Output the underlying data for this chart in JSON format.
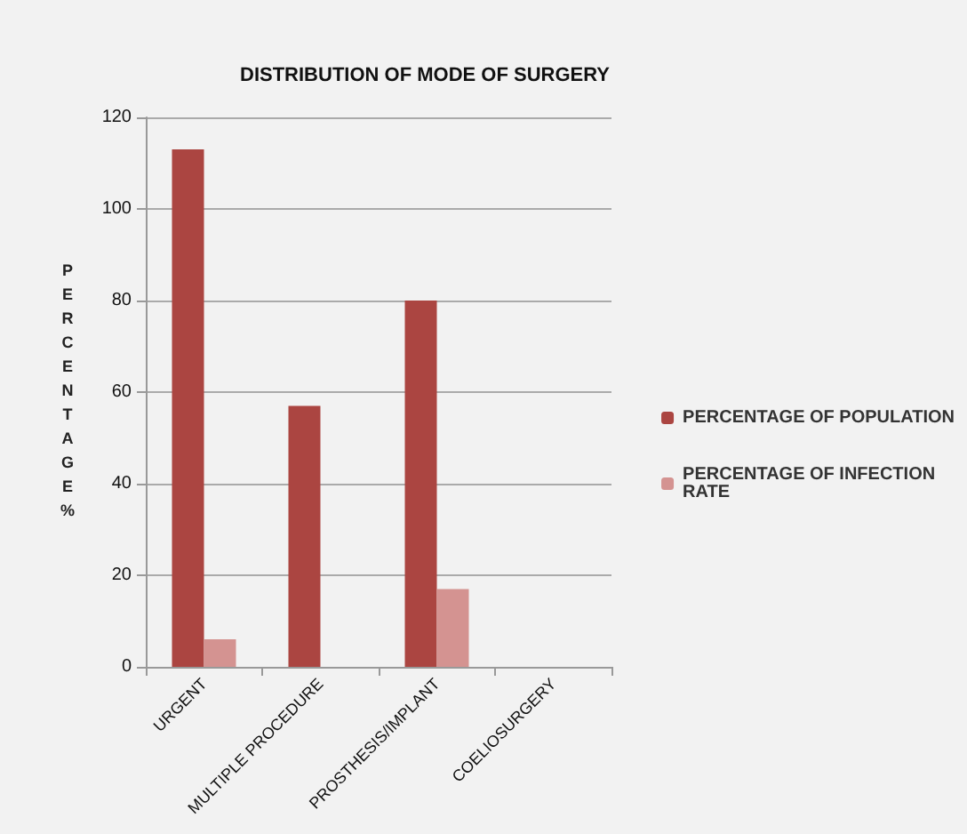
{
  "chart_data": {
    "type": "bar",
    "title": "DISTRIBUTION OF MODE OF SURGERY",
    "ylabel": "PERCENTAGE%",
    "categories": [
      "URGENT",
      "MULTIPLE PROCEDURE",
      "PROSTHESIS/IMPLANT",
      "COELIOSURGERY"
    ],
    "series": [
      {
        "name": "PERCENTAGE OF POPULATION",
        "color": "#ab4541",
        "values": [
          113,
          57,
          80,
          0
        ]
      },
      {
        "name": "PERCENTAGE OF INFECTION RATE",
        "color": "#d49391",
        "values": [
          6,
          0,
          17,
          0
        ]
      }
    ],
    "ylim": [
      0,
      120
    ],
    "yticks": [
      0,
      20,
      40,
      60,
      80,
      100,
      120
    ],
    "grid": "y",
    "legend": "right"
  }
}
